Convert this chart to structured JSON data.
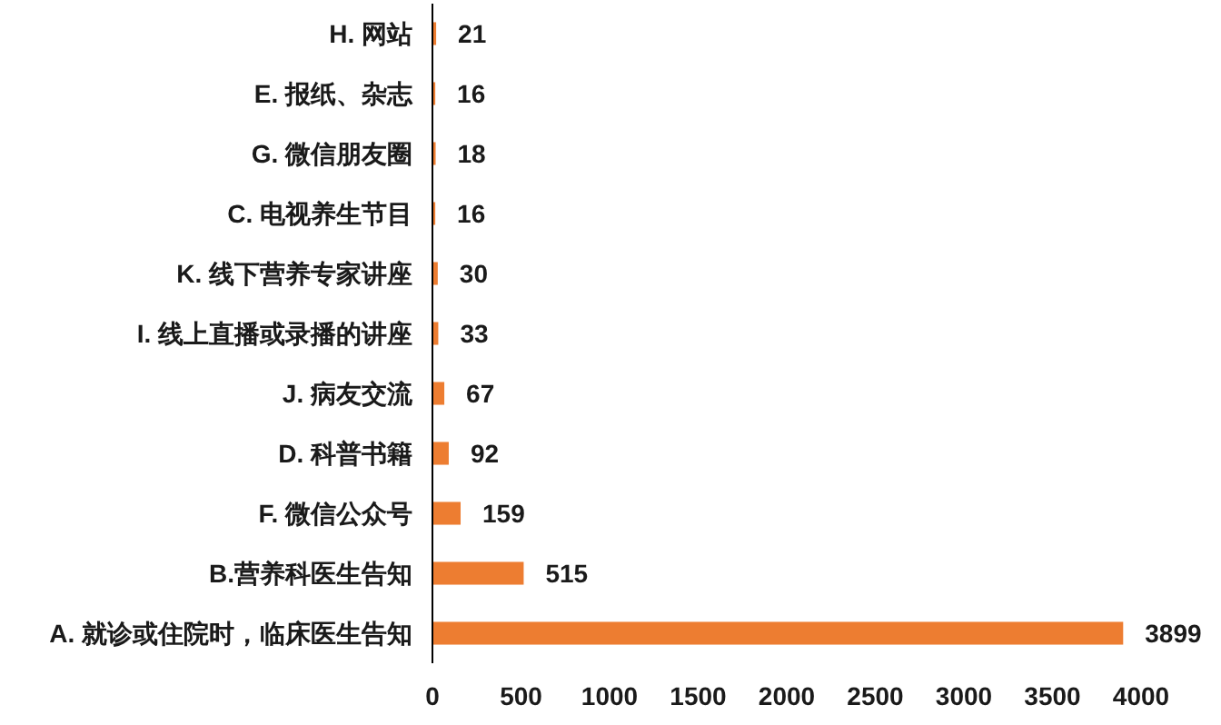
{
  "chart_data": {
    "type": "bar",
    "orientation": "horizontal",
    "categories": [
      "H. 网站",
      "E. 报纸、杂志",
      "G. 微信朋友圈",
      "C. 电视养生节目",
      "K. 线下营养专家讲座",
      "I. 线上直播或录播的讲座",
      "J. 病友交流",
      "D. 科普书籍",
      "F. 微信公众号",
      "B.营养科医生告知",
      "A. 就诊或住院时，临床医生告知"
    ],
    "values": [
      21,
      16,
      18,
      16,
      30,
      33,
      67,
      92,
      159,
      515,
      3899
    ],
    "color": "#ed7d31",
    "data_labels": true,
    "grid": false,
    "legend": false,
    "xlim": [
      0,
      4000
    ],
    "xticks": [
      0,
      500,
      1000,
      1500,
      2000,
      2500,
      3000,
      3500,
      4000
    ]
  }
}
